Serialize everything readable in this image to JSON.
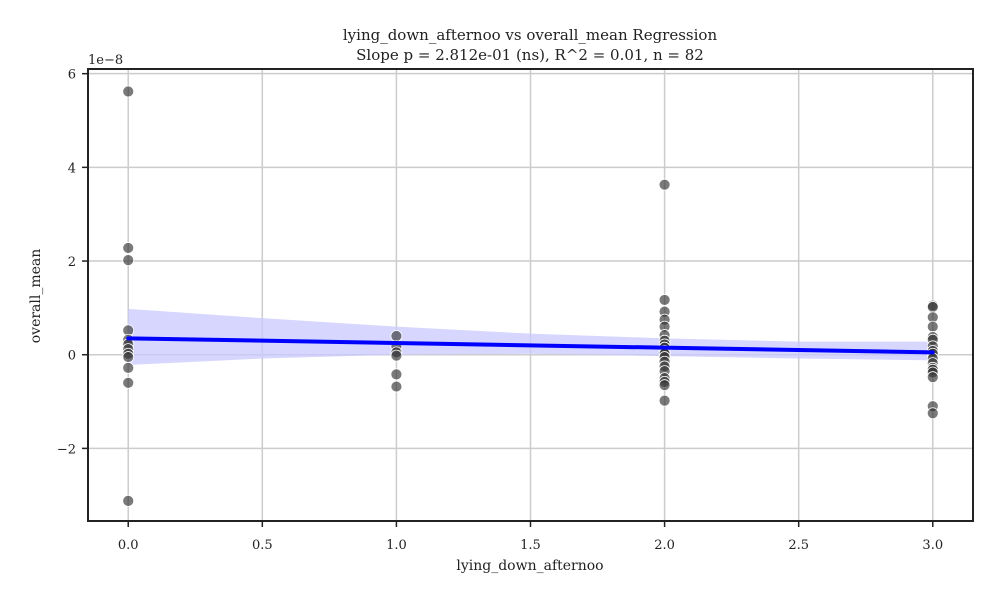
{
  "chart_data": {
    "type": "scatter",
    "title": "lying_down_afternoo vs overall_mean Regression",
    "subtitle": "Slope p = 2.812e-01 (ns), R^2 = 0.01, n = 82",
    "xlabel": "lying_down_afternoo",
    "ylabel": "overall_mean",
    "y_offset_label": "1e−8",
    "xlim": [
      -0.15,
      3.15
    ],
    "ylim": [
      -3.55,
      6.1
    ],
    "x_ticks": [
      0.0,
      0.5,
      1.0,
      1.5,
      2.0,
      2.5,
      3.0
    ],
    "x_tick_labels": [
      "0.0",
      "0.5",
      "1.0",
      "1.5",
      "2.0",
      "2.5",
      "3.0"
    ],
    "y_ticks": [
      -2,
      0,
      2,
      4,
      6
    ],
    "y_tick_labels": [
      "−2",
      "0",
      "2",
      "4",
      "6"
    ],
    "grid": true,
    "point_color": "#333333",
    "line_color": "#0000ff",
    "band_color": "#c8c8ff",
    "points": [
      {
        "x": 0,
        "y": 5.62
      },
      {
        "x": 0,
        "y": 2.28
      },
      {
        "x": 0,
        "y": 2.02
      },
      {
        "x": 0,
        "y": 0.52
      },
      {
        "x": 0,
        "y": 0.32
      },
      {
        "x": 0,
        "y": 0.22
      },
      {
        "x": 0,
        "y": 0.12
      },
      {
        "x": 0,
        "y": 0.02
      },
      {
        "x": 0,
        "y": -0.05
      },
      {
        "x": 0,
        "y": -0.28
      },
      {
        "x": 0,
        "y": -0.6
      },
      {
        "x": 0,
        "y": -3.12
      },
      {
        "x": 1,
        "y": 0.4
      },
      {
        "x": 1,
        "y": 0.18
      },
      {
        "x": 1,
        "y": 0.05
      },
      {
        "x": 1,
        "y": -0.02
      },
      {
        "x": 1,
        "y": -0.42
      },
      {
        "x": 1,
        "y": -0.68
      },
      {
        "x": 2,
        "y": 3.63
      },
      {
        "x": 2,
        "y": 1.17
      },
      {
        "x": 2,
        "y": 0.92
      },
      {
        "x": 2,
        "y": 0.75
      },
      {
        "x": 2,
        "y": 0.6
      },
      {
        "x": 2,
        "y": 0.42
      },
      {
        "x": 2,
        "y": 0.3
      },
      {
        "x": 2,
        "y": 0.22
      },
      {
        "x": 2,
        "y": 0.15
      },
      {
        "x": 2,
        "y": 0.08
      },
      {
        "x": 2,
        "y": 0.02
      },
      {
        "x": 2,
        "y": -0.05
      },
      {
        "x": 2,
        "y": -0.15
      },
      {
        "x": 2,
        "y": -0.25
      },
      {
        "x": 2,
        "y": -0.35
      },
      {
        "x": 2,
        "y": -0.5
      },
      {
        "x": 2,
        "y": -0.58
      },
      {
        "x": 2,
        "y": -0.65
      },
      {
        "x": 2,
        "y": -0.98
      },
      {
        "x": 3,
        "y": 1.05
      },
      {
        "x": 3,
        "y": 1.02
      },
      {
        "x": 3,
        "y": 0.8
      },
      {
        "x": 3,
        "y": 0.6
      },
      {
        "x": 3,
        "y": 0.38
      },
      {
        "x": 3,
        "y": 0.32
      },
      {
        "x": 3,
        "y": 0.18
      },
      {
        "x": 3,
        "y": 0.08
      },
      {
        "x": 3,
        "y": 0.02
      },
      {
        "x": 3,
        "y": -0.08
      },
      {
        "x": 3,
        "y": -0.18
      },
      {
        "x": 3,
        "y": -0.28
      },
      {
        "x": 3,
        "y": -0.32
      },
      {
        "x": 3,
        "y": -0.38
      },
      {
        "x": 3,
        "y": -0.48
      },
      {
        "x": 3,
        "y": -1.1
      },
      {
        "x": 3,
        "y": -1.25
      }
    ],
    "regression_line": {
      "x": [
        0,
        3
      ],
      "y": [
        0.35,
        0.05
      ]
    },
    "confidence_band": {
      "x": [
        0,
        0.5,
        1,
        1.5,
        2,
        2.5,
        3
      ],
      "upper": [
        0.98,
        0.78,
        0.6,
        0.45,
        0.35,
        0.28,
        0.28
      ],
      "lower": [
        -0.22,
        -0.08,
        0.0,
        0.02,
        -0.03,
        -0.08,
        -0.12
      ]
    }
  }
}
